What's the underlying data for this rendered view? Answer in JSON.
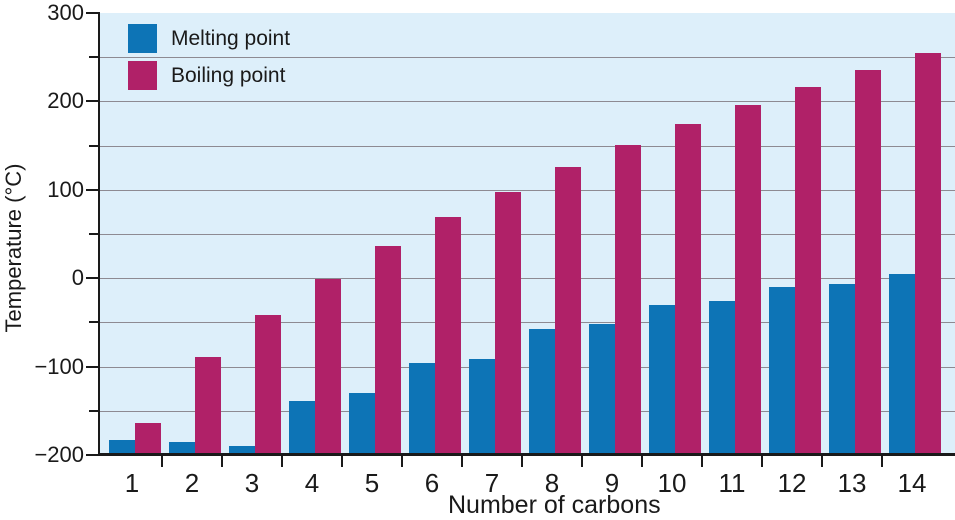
{
  "chart_data": {
    "type": "bar",
    "title": "",
    "xlabel": "Number of carbons",
    "ylabel": "Temperature (°C)",
    "categories": [
      "1",
      "2",
      "3",
      "4",
      "5",
      "6",
      "7",
      "8",
      "9",
      "10",
      "11",
      "12",
      "13",
      "14"
    ],
    "series": [
      {
        "name": "Melting point",
        "color": "#0d74b6",
        "values": [
          -183,
          -185,
          -190,
          -139,
          -130,
          -96,
          -91,
          -57,
          -52,
          -30,
          -26,
          -10,
          -6,
          5
        ]
      },
      {
        "name": "Boiling point",
        "color": "#b02168",
        "values": [
          -164,
          -89,
          -42,
          -1,
          36,
          69,
          98,
          126,
          151,
          174,
          196,
          216,
          235,
          255
        ]
      }
    ],
    "ylim": [
      -200,
      300
    ],
    "ytick_major_step": 100,
    "grid_step": 50,
    "grid": "on",
    "legend_position": "top-left",
    "colors": {
      "plot_background": "#ddeffa",
      "gridline": "#8d8a92",
      "axis": "#1a1a1a",
      "text": "#1a1a1a"
    }
  }
}
